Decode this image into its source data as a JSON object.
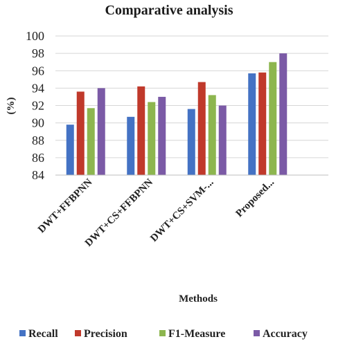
{
  "chart_data": {
    "type": "bar",
    "title": "Comparative  analysis",
    "xlabel": "Methods",
    "ylabel": "(%)",
    "ylim": [
      84,
      100
    ],
    "yticks": [
      84,
      86,
      88,
      90,
      92,
      94,
      96,
      98,
      100
    ],
    "grid": true,
    "legend_position": "bottom",
    "categories": [
      "DWT+FFBPNN",
      "DWT+CS+FFBPNN",
      "DWT+CS+SVM-...",
      "Proposed..."
    ],
    "series": [
      {
        "name": "Recall",
        "color": "#4472C4",
        "values": [
          89.8,
          90.7,
          91.6,
          95.7
        ]
      },
      {
        "name": "Precision",
        "color": "#C0392B",
        "values": [
          93.6,
          94.2,
          94.7,
          95.8
        ]
      },
      {
        "name": "F1-Measure",
        "color": "#8DB64F",
        "values": [
          91.7,
          92.4,
          93.2,
          97.0
        ]
      },
      {
        "name": "Accuracy",
        "color": "#7B5AA6",
        "values": [
          94.0,
          93.0,
          92.0,
          98.0
        ]
      }
    ]
  }
}
